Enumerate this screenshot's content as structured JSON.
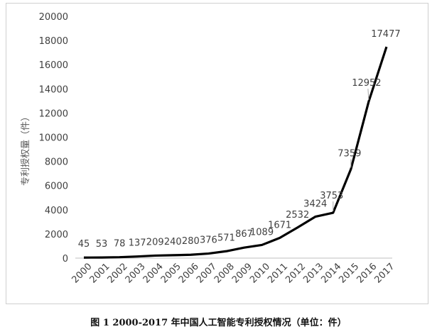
{
  "caption": "图 1   2000-2017 年中国人工智能专利授权情况（单位：件）",
  "chart_data": {
    "type": "line",
    "title": "",
    "xlabel": "",
    "ylabel": "专利授权量（件）",
    "x": [
      "2000",
      "2001",
      "2002",
      "2003",
      "2004",
      "2005",
      "2006",
      "2007",
      "2008",
      "2009",
      "2010",
      "2011",
      "2012",
      "2013",
      "2014",
      "2015",
      "2016",
      "2017"
    ],
    "values": [
      45,
      53,
      78,
      137,
      209,
      240,
      280,
      376,
      571,
      867,
      1089,
      1671,
      2532,
      3424,
      3753,
      7359,
      12952,
      17477
    ],
    "labels": [
      "45",
      "53",
      "78",
      "137",
      "209",
      "240",
      "280",
      "376",
      "571",
      "867",
      "1089",
      "1671",
      "2532",
      "3424",
      "3753",
      "7359",
      "12952",
      "17477"
    ],
    "ylim": [
      0,
      20000
    ],
    "yticks": [
      "0",
      "2000",
      "4000",
      "6000",
      "8000",
      "10000",
      "12000",
      "14000",
      "16000",
      "18000",
      "20000"
    ],
    "grid": false,
    "line_color": "#000000"
  }
}
